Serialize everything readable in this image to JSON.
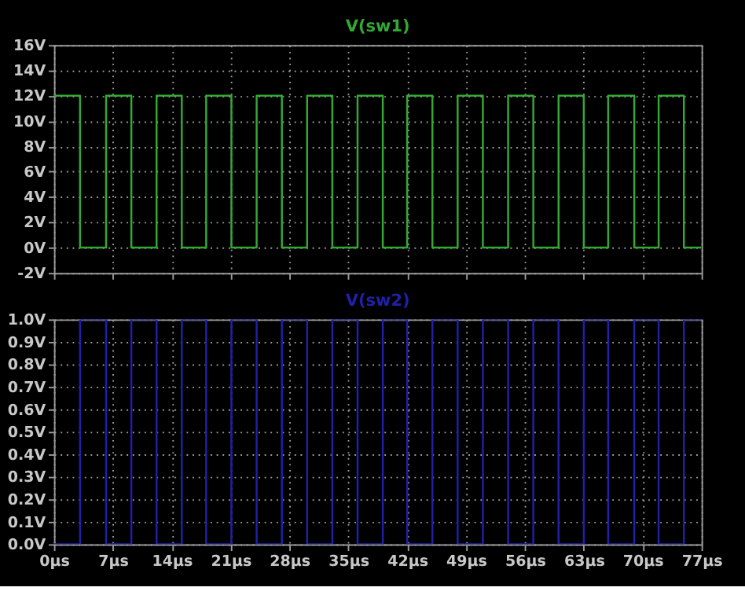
{
  "chart_data": [
    {
      "type": "step",
      "title": "V(sw1)",
      "x": [
        0,
        3.1,
        6.2,
        9.2,
        12.2,
        15.2,
        18.1,
        21.1,
        24.1,
        27.1,
        30.1,
        33.1,
        36.1,
        39.1,
        42.0,
        45.0,
        48.0,
        51.0,
        54.0,
        57.0,
        60.0,
        63.0,
        65.9,
        69.0,
        71.9,
        74.9,
        77
      ],
      "series": [
        {
          "color": "#34a834",
          "values": [
            12,
            0,
            12,
            0,
            12,
            0,
            12,
            0,
            12,
            0,
            12,
            0,
            12,
            0,
            12,
            0,
            12,
            0,
            12,
            0,
            12,
            0,
            12,
            0,
            12,
            0,
            0
          ]
        }
      ],
      "xlim": [
        0,
        77
      ],
      "xticks": [
        0,
        7,
        14,
        21,
        28,
        35,
        42,
        49,
        56,
        63,
        70,
        77
      ],
      "ylim": [
        -2,
        16
      ],
      "yticks": [
        {
          "value": -2,
          "label": "-2V"
        },
        {
          "value": 0,
          "label": "0V"
        },
        {
          "value": 2,
          "label": "2V"
        },
        {
          "value": 4,
          "label": "4V"
        },
        {
          "value": 6,
          "label": "6V"
        },
        {
          "value": 8,
          "label": "8V"
        },
        {
          "value": 10,
          "label": "10V"
        },
        {
          "value": 12,
          "label": "12V"
        },
        {
          "value": 14,
          "label": "14V"
        },
        {
          "value": 16,
          "label": "16V"
        }
      ],
      "grid": true,
      "tick_labels": "y"
    },
    {
      "type": "step",
      "title": "V(sw2)",
      "x": [
        0,
        3.1,
        6.2,
        9.2,
        12.2,
        15.2,
        18.1,
        21.1,
        24.1,
        27.1,
        30.1,
        33.1,
        36.1,
        39.1,
        42.0,
        45.0,
        48.0,
        51.0,
        54.0,
        57.0,
        60.0,
        63.0,
        65.9,
        69.0,
        71.9,
        74.9,
        77
      ],
      "series": [
        {
          "color": "#2020a8",
          "values": [
            0,
            1,
            0,
            1,
            0,
            1,
            0,
            1,
            0,
            1,
            0,
            1,
            0,
            1,
            0,
            1,
            0,
            1,
            0,
            1,
            0,
            1,
            0,
            1,
            0,
            1,
            1
          ]
        }
      ],
      "xlim": [
        0,
        77
      ],
      "xticks": [
        {
          "value": 0,
          "label": "0µs"
        },
        {
          "value": 7,
          "label": "7µs"
        },
        {
          "value": 14,
          "label": "14µs"
        },
        {
          "value": 21,
          "label": "21µs"
        },
        {
          "value": 28,
          "label": "28µs"
        },
        {
          "value": 35,
          "label": "35µs"
        },
        {
          "value": 42,
          "label": "42µs"
        },
        {
          "value": 49,
          "label": "49µs"
        },
        {
          "value": 56,
          "label": "56µs"
        },
        {
          "value": 63,
          "label": "63µs"
        },
        {
          "value": 70,
          "label": "70µs"
        },
        {
          "value": 77,
          "label": "77µs"
        }
      ],
      "ylim": [
        0,
        1
      ],
      "yticks": [
        {
          "value": 0,
          "label": "0.0V"
        },
        {
          "value": 0.1,
          "label": "0.1V"
        },
        {
          "value": 0.2,
          "label": "0.2V"
        },
        {
          "value": 0.3,
          "label": "0.3V"
        },
        {
          "value": 0.4,
          "label": "0.4V"
        },
        {
          "value": 0.5,
          "label": "0.5V"
        },
        {
          "value": 0.6,
          "label": "0.6V"
        },
        {
          "value": 0.7,
          "label": "0.7V"
        },
        {
          "value": 0.8,
          "label": "0.8V"
        },
        {
          "value": 0.9,
          "label": "0.9V"
        },
        {
          "value": 1.0,
          "label": "1.0V"
        }
      ],
      "grid": true
    }
  ]
}
